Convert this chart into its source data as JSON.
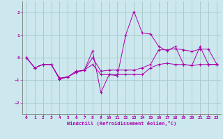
{
  "title": "",
  "xlabel": "Windchill (Refroidissement éolien,°C)",
  "ylabel": "",
  "background_color": "#cce8ee",
  "grid_color": "#aacccc",
  "line_color": "#aa00aa",
  "xlim": [
    -0.5,
    23.5
  ],
  "ylim": [
    -2.5,
    2.5
  ],
  "xticks": [
    0,
    1,
    2,
    3,
    4,
    5,
    6,
    7,
    8,
    9,
    10,
    11,
    12,
    13,
    14,
    15,
    16,
    17,
    18,
    19,
    20,
    21,
    22,
    23
  ],
  "yticks": [
    -2,
    -1,
    0,
    1,
    2
  ],
  "series1": [
    0.0,
    -0.45,
    -0.3,
    -0.3,
    -0.9,
    -0.85,
    -0.6,
    -0.55,
    0.3,
    -1.55,
    -0.75,
    -0.8,
    1.0,
    2.05,
    1.1,
    1.05,
    0.5,
    0.3,
    0.5,
    -0.3,
    -0.35,
    0.5,
    -0.3,
    -0.3
  ],
  "series2": [
    0.0,
    -0.45,
    -0.3,
    -0.3,
    -0.95,
    -0.85,
    -0.65,
    -0.55,
    -0.3,
    -0.75,
    -0.75,
    -0.75,
    -0.75,
    -0.75,
    -0.75,
    -0.45,
    -0.3,
    -0.25,
    -0.3,
    -0.3,
    -0.35,
    -0.3,
    -0.3,
    -0.3
  ],
  "series3": [
    0.0,
    -0.45,
    -0.3,
    -0.3,
    -0.95,
    -0.85,
    -0.65,
    -0.55,
    0.0,
    -0.6,
    -0.55,
    -0.55,
    -0.55,
    -0.55,
    -0.45,
    -0.3,
    0.35,
    0.35,
    0.4,
    0.35,
    0.28,
    0.38,
    0.38,
    -0.28
  ]
}
